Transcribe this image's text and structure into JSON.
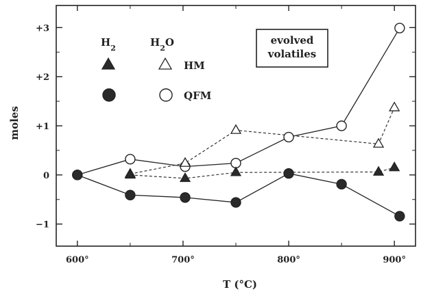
{
  "chart_data": {
    "type": "line",
    "xlabel": "T (°C)",
    "ylabel": "moles",
    "xlim": [
      580,
      920
    ],
    "ylim": [
      -1.45,
      3.45
    ],
    "x_ticks": [
      600,
      700,
      800,
      900
    ],
    "x_tick_labels": [
      "600°",
      "700°",
      "800°",
      "900°"
    ],
    "y_ticks": [
      -1,
      0,
      1,
      2,
      3
    ],
    "y_tick_labels": [
      "−1",
      "0",
      "+1",
      "+2",
      "+3"
    ],
    "grid": false,
    "annotation": [
      "evolved",
      "volatiles"
    ],
    "legend": {
      "column_headers": [
        "H2",
        "H2O"
      ],
      "rows": [
        "HM",
        "QFM"
      ]
    },
    "series": [
      {
        "name": "QFM H2O",
        "buffer": "QFM",
        "species": "H2O",
        "marker": "circle-open",
        "line": "solid",
        "x": [
          600,
          650,
          702,
          750,
          800,
          850,
          905
        ],
        "y": [
          0.0,
          0.32,
          0.17,
          0.24,
          0.77,
          1.0,
          2.99
        ]
      },
      {
        "name": "QFM H2",
        "buffer": "QFM",
        "species": "H2",
        "marker": "circle-filled",
        "line": "solid",
        "x": [
          600,
          650,
          702,
          750,
          800,
          850,
          905
        ],
        "y": [
          0.0,
          -0.41,
          -0.46,
          -0.56,
          0.03,
          -0.19,
          -0.84
        ]
      },
      {
        "name": "HM H2O",
        "buffer": "HM",
        "species": "H2O",
        "marker": "triangle-open",
        "line": "dashed",
        "x": [
          650,
          702,
          750,
          885,
          900
        ],
        "y": [
          0.02,
          0.24,
          0.91,
          0.63,
          1.37
        ]
      },
      {
        "name": "HM H2",
        "buffer": "HM",
        "species": "H2",
        "marker": "triangle-filled",
        "line": "dashed",
        "x": [
          650,
          702,
          750,
          885,
          900
        ],
        "y": [
          0.0,
          -0.07,
          0.05,
          0.06,
          0.15
        ]
      }
    ]
  }
}
